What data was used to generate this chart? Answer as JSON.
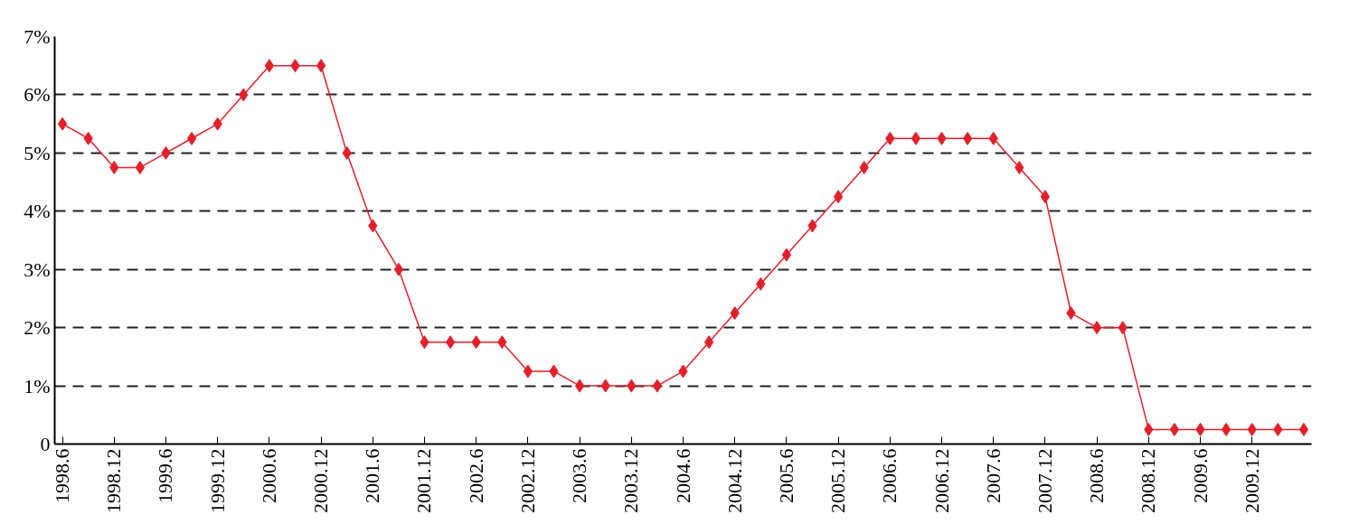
{
  "chart_data": {
    "type": "line",
    "categories": [
      "1998.6",
      null,
      "1998.12",
      null,
      "1999.6",
      null,
      "1999.12",
      null,
      "2000.6",
      null,
      "2000.12",
      null,
      "2001.6",
      null,
      "2001.12",
      null,
      "2002.6",
      null,
      "2002.12",
      null,
      "2003.6",
      null,
      "2003.12",
      null,
      "2004.6",
      null,
      "2004.12",
      null,
      "2005.6",
      null,
      "2005.12",
      null,
      "2006.6",
      null,
      "2006.12",
      null,
      "2007.6",
      null,
      "2007.12",
      null,
      "2008.6",
      null,
      "2008.12",
      null,
      "2009.6",
      null,
      "2009.12",
      null,
      null
    ],
    "series": [
      {
        "color": "#e3202a",
        "values": [
          5.5,
          5.25,
          4.75,
          4.75,
          5.0,
          5.25,
          5.5,
          6.0,
          6.5,
          6.5,
          6.5,
          5.0,
          3.75,
          3.0,
          1.75,
          1.75,
          1.75,
          1.75,
          1.25,
          1.25,
          1.0,
          1.0,
          1.0,
          1.0,
          1.25,
          1.75,
          2.25,
          2.75,
          3.25,
          3.75,
          4.25,
          4.75,
          5.25,
          5.25,
          5.25,
          5.25,
          5.25,
          4.75,
          4.25,
          2.25,
          2.0,
          2.0,
          0.25,
          0.25,
          0.25,
          0.25,
          0.25,
          0.25,
          0.25
        ]
      }
    ],
    "ylim": [
      0,
      7
    ],
    "yticks": [
      0,
      {
        "value": 1,
        "label": "1%"
      },
      {
        "value": 2,
        "label": "2%"
      },
      {
        "value": 3,
        "label": "3%"
      },
      {
        "value": 4,
        "label": "4%"
      },
      {
        "value": 5,
        "label": "5%"
      },
      {
        "value": 6,
        "label": "6%"
      },
      {
        "value": 7,
        "label": "7%"
      }
    ],
    "grid": "y",
    "marker": "diamond",
    "line_style": "solid"
  }
}
